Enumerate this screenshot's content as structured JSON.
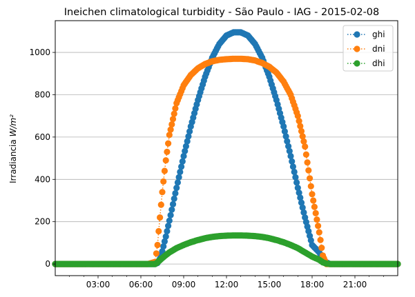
{
  "chart_data": {
    "type": "line",
    "title": "Ineichen climatological turbidity - São Paulo - IAG - 2015-02-08",
    "xlabel": "",
    "ylabel": "Irradiancia",
    "ylabel_unit": "W/m²",
    "xlim": [
      "00:00",
      "24:00"
    ],
    "ylim": [
      -55,
      1150
    ],
    "x_ticks": [
      "03:00",
      "06:00",
      "09:00",
      "12:00",
      "15:00",
      "18:00",
      "21:00"
    ],
    "y_ticks": [
      0,
      200,
      400,
      600,
      800,
      1000
    ],
    "grid": "horizontal",
    "legend_position": "top-right",
    "sampling": "every 5 minutes",
    "x": [
      "00:00",
      "00:30",
      "01:00",
      "01:30",
      "02:00",
      "02:30",
      "03:00",
      "03:30",
      "04:00",
      "04:30",
      "05:00",
      "05:30",
      "06:00",
      "06:30",
      "07:00",
      "07:10",
      "07:20",
      "07:30",
      "07:45",
      "08:00",
      "08:30",
      "09:00",
      "09:30",
      "10:00",
      "10:30",
      "11:00",
      "11:30",
      "12:00",
      "12:30",
      "13:00",
      "13:30",
      "14:00",
      "14:30",
      "15:00",
      "15:30",
      "16:00",
      "16:30",
      "17:00",
      "17:30",
      "18:00",
      "18:30",
      "18:45",
      "19:00",
      "19:15",
      "19:25",
      "19:35",
      "19:45",
      "20:00",
      "20:30",
      "21:00",
      "21:30",
      "22:00",
      "22:30",
      "23:00",
      "23:30",
      "24:00"
    ],
    "series": [
      {
        "name": "ghi",
        "color": "#1f77b4",
        "values": [
          0,
          0,
          0,
          0,
          0,
          0,
          0,
          0,
          0,
          0,
          0,
          0,
          0,
          0,
          0,
          5,
          25,
          60,
          130,
          205,
          360,
          510,
          650,
          775,
          885,
          975,
          1040,
          1080,
          1095,
          1095,
          1080,
          1040,
          975,
          885,
          775,
          650,
          510,
          360,
          220,
          90,
          55,
          25,
          8,
          0,
          0,
          0,
          0,
          0,
          0,
          0,
          0,
          0,
          0,
          0,
          0,
          0
        ]
      },
      {
        "name": "dni",
        "color": "#ff7f0e",
        "values": [
          0,
          0,
          0,
          0,
          0,
          0,
          0,
          0,
          0,
          0,
          0,
          0,
          0,
          0,
          10,
          90,
          220,
          340,
          490,
          610,
          760,
          845,
          893,
          925,
          945,
          958,
          965,
          968,
          970,
          970,
          968,
          962,
          950,
          932,
          905,
          862,
          800,
          700,
          555,
          330,
          150,
          40,
          0,
          0,
          0,
          0,
          0,
          0,
          0,
          0,
          0,
          0,
          0,
          0,
          0,
          0
        ]
      },
      {
        "name": "dhi",
        "color": "#2ca02c",
        "values": [
          0,
          0,
          0,
          0,
          0,
          0,
          0,
          0,
          0,
          0,
          0,
          0,
          0,
          0,
          0,
          8,
          18,
          28,
          42,
          55,
          75,
          90,
          103,
          113,
          122,
          128,
          132,
          134,
          135,
          135,
          134,
          132,
          128,
          122,
          113,
          103,
          90,
          75,
          55,
          35,
          20,
          8,
          2,
          0,
          0,
          0,
          0,
          0,
          0,
          0,
          0,
          0,
          0,
          0,
          0,
          0
        ]
      }
    ]
  }
}
